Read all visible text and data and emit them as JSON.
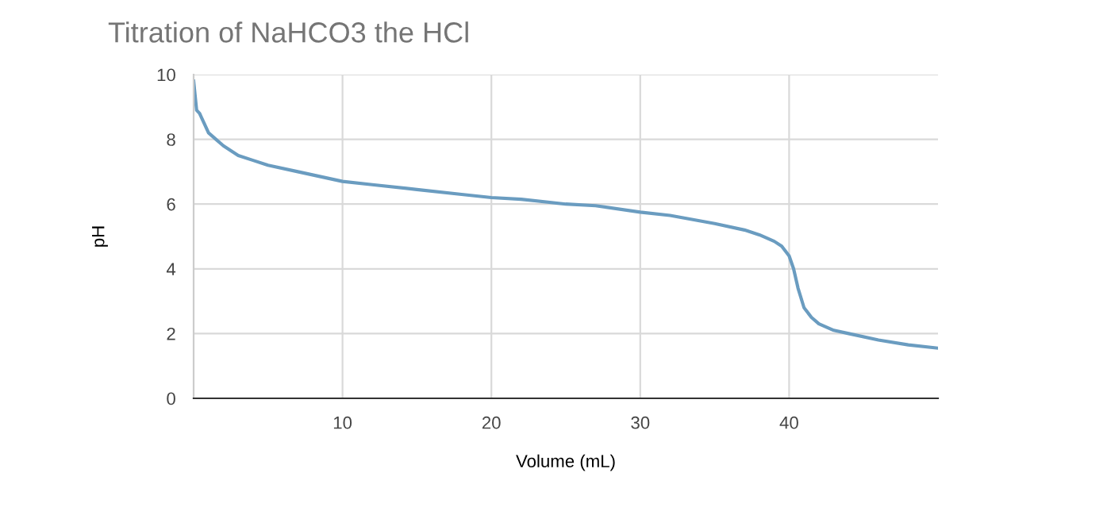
{
  "chart_data": {
    "type": "line",
    "title": "Titration of NaHCO3 the HCl",
    "xlabel": "Volume (mL)",
    "ylabel": "pH",
    "x": [
      0,
      0.2,
      0.4,
      0.7,
      1,
      1.5,
      2,
      3,
      4,
      5,
      7,
      10,
      12,
      15,
      18,
      20,
      22,
      25,
      27,
      30,
      32,
      35,
      37,
      38,
      39,
      39.5,
      40,
      40.3,
      40.6,
      41,
      41.5,
      42,
      43,
      44,
      46,
      48,
      50
    ],
    "series": [
      {
        "color": "#6a9cc0",
        "values": [
          9.8,
          8.9,
          8.8,
          8.5,
          8.2,
          8.0,
          7.8,
          7.5,
          7.35,
          7.2,
          7.0,
          6.7,
          6.6,
          6.45,
          6.3,
          6.2,
          6.15,
          6.0,
          5.95,
          5.75,
          5.65,
          5.4,
          5.2,
          5.05,
          4.85,
          4.7,
          4.4,
          4.0,
          3.4,
          2.8,
          2.5,
          2.3,
          2.1,
          2.0,
          1.8,
          1.65,
          1.55
        ]
      }
    ],
    "xlim": [
      0,
      50
    ],
    "ylim": [
      0,
      10
    ],
    "xticks": [
      10,
      20,
      30,
      40
    ],
    "yticks": [
      0,
      2,
      4,
      6,
      8,
      10
    ],
    "grid": true,
    "marker": "none",
    "line_style": "solid"
  }
}
